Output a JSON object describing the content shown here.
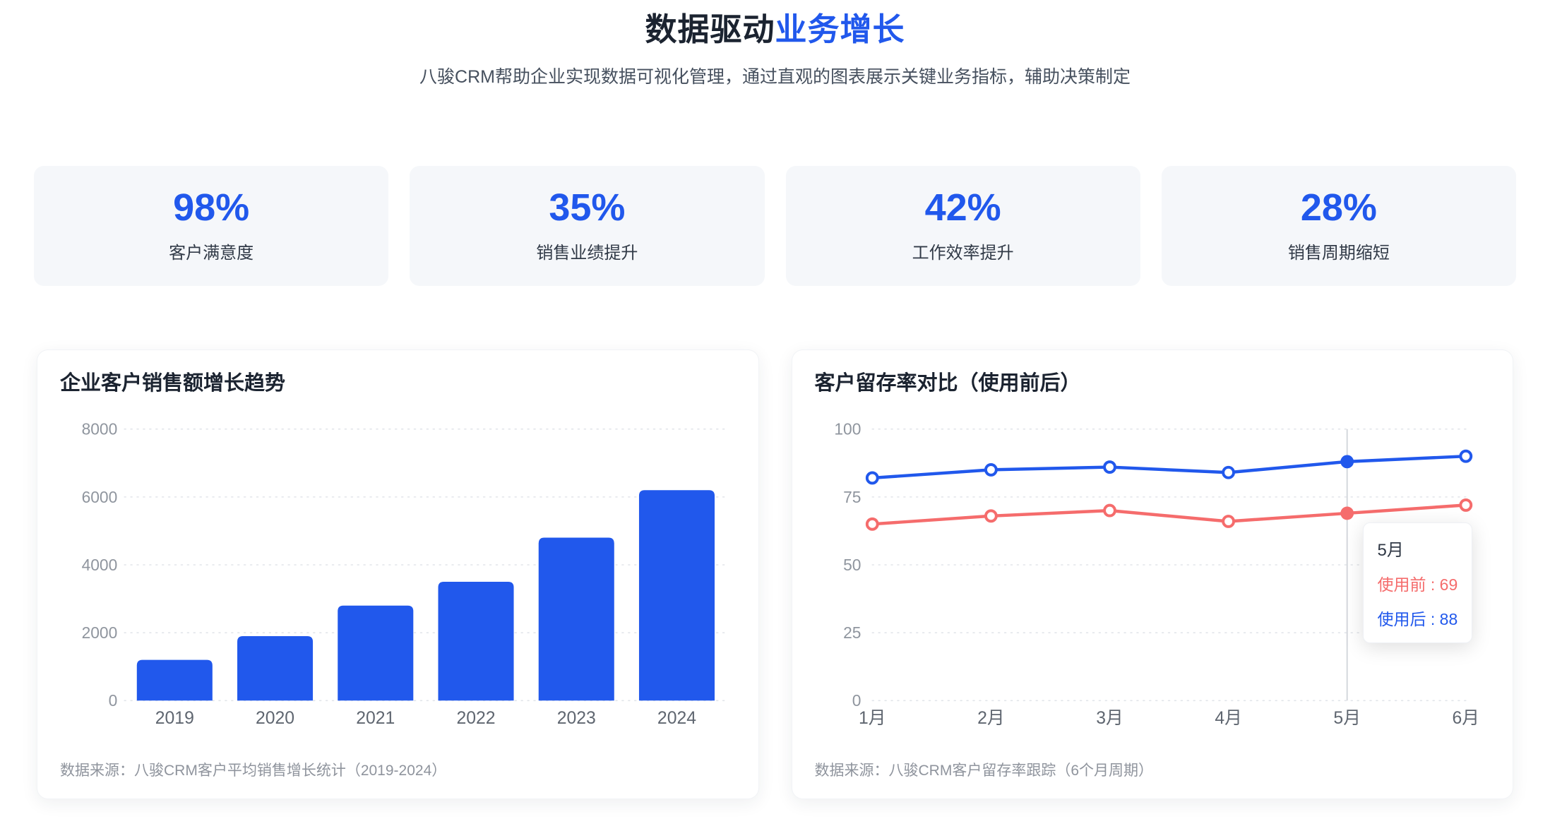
{
  "header": {
    "title_main": "数据驱动",
    "title_accent": "业务增长",
    "subtitle": "八骏CRM帮助企业实现数据可视化管理，通过直观的图表展示关键业务指标，辅助决策制定"
  },
  "stats": [
    {
      "value": "98%",
      "label": "客户满意度"
    },
    {
      "value": "35%",
      "label": "销售业绩提升"
    },
    {
      "value": "42%",
      "label": "工作效率提升"
    },
    {
      "value": "28%",
      "label": "销售周期缩短"
    }
  ],
  "colors": {
    "accent": "#2158ec",
    "bar": "#2158ec",
    "line_before": "#f56c6c",
    "line_after": "#2158ec",
    "grid": "#e2e5ea",
    "crosshair": "#d4d7dc",
    "y_tick": "#8f959e",
    "x_tick": "#5f6670",
    "title_dark": "#1b2330",
    "stat_card_bg": "#f5f7fa"
  },
  "chart_data": [
    {
      "type": "bar",
      "title": "企业客户销售额增长趋势",
      "categories": [
        "2019",
        "2020",
        "2021",
        "2022",
        "2023",
        "2024"
      ],
      "values": [
        1200,
        1900,
        2800,
        3500,
        4800,
        6200
      ],
      "xlabel": "",
      "ylabel": "",
      "ylim": [
        0,
        8000
      ],
      "yticks": [
        0,
        2000,
        4000,
        6000,
        8000
      ],
      "grid": "dotted-horizontal",
      "legend": "none",
      "source": "数据来源：八骏CRM客户平均销售增长统计（2019-2024）"
    },
    {
      "type": "line",
      "title": "客户留存率对比（使用前后）",
      "x": [
        "1月",
        "2月",
        "3月",
        "4月",
        "5月",
        "6月"
      ],
      "series": [
        {
          "name": "使用前",
          "color": "#f56c6c",
          "values": [
            65,
            68,
            70,
            66,
            69,
            72
          ]
        },
        {
          "name": "使用后",
          "color": "#2158ec",
          "values": [
            82,
            85,
            86,
            84,
            88,
            90
          ]
        }
      ],
      "ylim": [
        0,
        100
      ],
      "yticks": [
        0,
        25,
        50,
        75,
        100
      ],
      "grid": "dotted-horizontal",
      "legend": "none",
      "highlight": {
        "index": 4,
        "label": "5月"
      },
      "tooltip": {
        "title": "5月",
        "rows": [
          {
            "series": "使用前",
            "value": 69,
            "text": "使用前 : 69",
            "color": "#f56c6c"
          },
          {
            "series": "使用后",
            "value": 88,
            "text": "使用后 : 88",
            "color": "#2158ec"
          }
        ]
      },
      "source": "数据来源：八骏CRM客户留存率跟踪（6个月周期）"
    }
  ]
}
